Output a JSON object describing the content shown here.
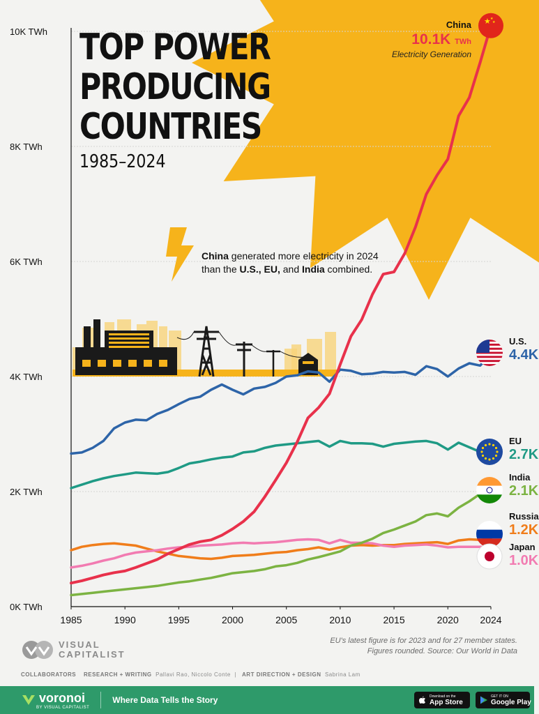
{
  "title": {
    "lines": [
      "TOP POWER",
      "PRODUCING",
      "COUNTRIES"
    ],
    "subtitle": "1985–2024"
  },
  "callout": {
    "icon": "lightning-icon",
    "china": "China",
    "text1": " generated more electricity in 2024 than the ",
    "us_eu": "U.S., EU,",
    "text2": " and ",
    "india": "India",
    "text3": " combined."
  },
  "labels": {
    "china": {
      "country": "China",
      "value": "10.1K",
      "unit": "TWh",
      "note": "Electricity Generation"
    },
    "us": {
      "country": "U.S.",
      "value": "4.4K"
    },
    "eu": {
      "country": "EU",
      "value": "2.7K"
    },
    "india": {
      "country": "India",
      "value": "2.1K"
    },
    "russia": {
      "country": "Russia",
      "value": "1.2K"
    },
    "japan": {
      "country": "Japan",
      "value": "1.0K"
    }
  },
  "footer": {
    "note1": "EU's latest figure is for 2023 and for 27 member states.",
    "note2": "Figures rounded. Source: Our World in Data",
    "brand1": "VISUAL",
    "brand2": "CAPITALIST",
    "collab_label": "COLLABORATORS",
    "research_label": "RESEARCH + WRITING",
    "research_names": "Pallavi Rao, Niccolo Conte",
    "art_label": "ART DIRECTION + DESIGN",
    "art_names": "Sabrina Lam",
    "voronoi": "voronoi",
    "voronoi_sub": "BY VISUAL CAPITALIST",
    "tagline": "Where Data Tells the Story",
    "appstore_small": "Download on the",
    "appstore": "App Store",
    "googleplay_small": "GET IT ON",
    "googleplay": "Google Play"
  },
  "colors": {
    "china": "#e8314b",
    "us": "#2d64a8",
    "eu": "#1f9a85",
    "india": "#7cb342",
    "russia": "#f07d1a",
    "japan": "#f27bb1",
    "sun": "#f6b31b"
  },
  "chart_data": {
    "type": "line",
    "xlim": [
      1985,
      2024
    ],
    "ylim": [
      0,
      10000
    ],
    "yunit": "TWh",
    "x_ticks": [
      1985,
      1990,
      1995,
      2000,
      2005,
      2010,
      2015,
      2020,
      2024
    ],
    "y_ticks": [
      {
        "value": 0,
        "label": "0K TWh"
      },
      {
        "value": 2000,
        "label": "2K TWh"
      },
      {
        "value": 4000,
        "label": "4K TWh"
      },
      {
        "value": 6000,
        "label": "6K TWh"
      },
      {
        "value": 8000,
        "label": "8K TWh"
      },
      {
        "value": 10000,
        "label": "10K TWh"
      }
    ],
    "grid": true,
    "series": [
      {
        "name": "Russia",
        "key": "russia",
        "values": [
          980,
          1040,
          1070,
          1090,
          1100,
          1080,
          1060,
          1010,
          960,
          920,
          880,
          860,
          840,
          830,
          850,
          880,
          890,
          900,
          920,
          940,
          950,
          980,
          1000,
          1030,
          990,
          1030,
          1060,
          1070,
          1060,
          1070,
          1070,
          1090,
          1100,
          1110,
          1120,
          1090,
          1150,
          1170,
          1160,
          1180
        ]
      },
      {
        "name": "Japan",
        "key": "japan",
        "values": [
          680,
          710,
          750,
          800,
          840,
          900,
          940,
          960,
          980,
          1010,
          1030,
          1040,
          1060,
          1070,
          1080,
          1100,
          1110,
          1100,
          1110,
          1120,
          1140,
          1160,
          1170,
          1160,
          1100,
          1160,
          1110,
          1110,
          1100,
          1060,
          1040,
          1060,
          1070,
          1080,
          1060,
          1030,
          1040,
          1040,
          1040,
          1030
        ]
      },
      {
        "name": "India",
        "key": "india",
        "values": [
          200,
          220,
          240,
          260,
          280,
          300,
          320,
          340,
          360,
          390,
          420,
          440,
          470,
          500,
          540,
          580,
          600,
          620,
          650,
          700,
          720,
          760,
          820,
          860,
          910,
          960,
          1060,
          1110,
          1180,
          1280,
          1340,
          1410,
          1480,
          1590,
          1620,
          1570,
          1720,
          1830,
          1960,
          2050
        ]
      },
      {
        "name": "EU",
        "key": "eu",
        "values": [
          2060,
          2120,
          2180,
          2230,
          2270,
          2300,
          2330,
          2320,
          2310,
          2340,
          2410,
          2490,
          2520,
          2560,
          2590,
          2610,
          2680,
          2700,
          2760,
          2800,
          2820,
          2840,
          2860,
          2880,
          2780,
          2880,
          2840,
          2840,
          2830,
          2780,
          2830,
          2850,
          2870,
          2880,
          2840,
          2730,
          2850,
          2770,
          2690,
          2700
        ]
      },
      {
        "name": "U.S.",
        "key": "us",
        "values": [
          2660,
          2680,
          2760,
          2880,
          3100,
          3200,
          3250,
          3240,
          3350,
          3420,
          3520,
          3610,
          3650,
          3770,
          3860,
          3770,
          3690,
          3790,
          3820,
          3890,
          4000,
          4020,
          4090,
          4070,
          3910,
          4120,
          4100,
          4040,
          4050,
          4080,
          4070,
          4080,
          4030,
          4180,
          4130,
          4000,
          4140,
          4230,
          4190,
          4390
        ]
      },
      {
        "name": "China",
        "key": "china",
        "values": [
          410,
          450,
          500,
          550,
          590,
          620,
          680,
          750,
          820,
          920,
          1000,
          1080,
          1130,
          1160,
          1240,
          1350,
          1480,
          1650,
          1910,
          2200,
          2500,
          2860,
          3280,
          3460,
          3700,
          4210,
          4700,
          4990,
          5430,
          5780,
          5820,
          6140,
          6600,
          7170,
          7500,
          7780,
          8530,
          8850,
          9460,
          10100
        ]
      }
    ]
  }
}
